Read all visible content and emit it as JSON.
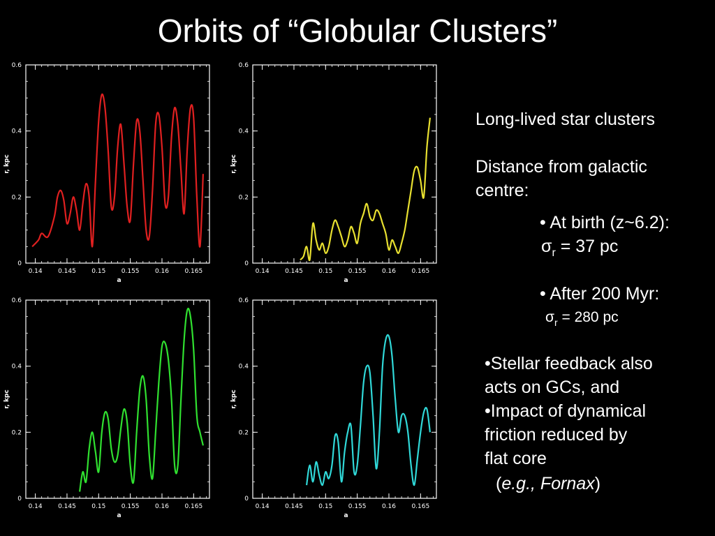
{
  "title": "Orbits of “Globular Clusters”",
  "text": {
    "line1": "Long-lived star clusters",
    "distance_line1": "Distance from galactic",
    "distance_line2": "centre:",
    "birth_label": "• At birth (z~6.2):",
    "sigma_symbol": "σ",
    "sigma_sub": "r",
    "birth_value": " = 37 pc",
    "after_label": "• After 200 Myr:",
    "after_value": " = 280 pc",
    "feedback_1": "•Stellar feedback also",
    "feedback_2": "acts on GCs, and",
    "impact_1": "•Impact of dynamical",
    "impact_2": "friction reduced by",
    "impact_3": "flat core",
    "eg_open": "(",
    "eg_text": "e.g., Fornax",
    "eg_close": ")"
  },
  "chart_data": [
    {
      "type": "line",
      "color": "#e02020",
      "xlabel": "a",
      "ylabel": "r, kpc",
      "xlim": [
        0.1385,
        0.1675
      ],
      "ylim": [
        0,
        0.6
      ],
      "xticks": [
        0.14,
        0.145,
        0.15,
        0.155,
        0.16,
        0.165
      ],
      "xtick_labels": [
        "0.14",
        "0.145",
        "0.15",
        "0.155",
        "0.16",
        "0.165"
      ],
      "yticks": [
        0,
        0.2,
        0.4,
        0.6
      ],
      "ytick_labels": [
        "0",
        "0.2",
        "0.4",
        "0.6"
      ],
      "series": [
        {
          "x": [
            0.1395,
            0.1405,
            0.141,
            0.142,
            0.143,
            0.1435,
            0.144,
            0.1445,
            0.145,
            0.1455,
            0.146,
            0.1465,
            0.147,
            0.1475,
            0.148,
            0.1485,
            0.149,
            0.1495,
            0.15,
            0.1505,
            0.151,
            0.1515,
            0.152,
            0.1525,
            0.153,
            0.1535,
            0.154,
            0.1545,
            0.155,
            0.1555,
            0.156,
            0.1565,
            0.157,
            0.1575,
            0.158,
            0.1585,
            0.159,
            0.1595,
            0.16,
            0.1605,
            0.161,
            0.1615,
            0.162,
            0.1625,
            0.163,
            0.1635,
            0.164,
            0.1645,
            0.165,
            0.1655,
            0.166,
            0.1665
          ],
          "y": [
            0.05,
            0.07,
            0.09,
            0.08,
            0.14,
            0.2,
            0.22,
            0.19,
            0.12,
            0.15,
            0.2,
            0.16,
            0.1,
            0.18,
            0.24,
            0.2,
            0.05,
            0.25,
            0.43,
            0.51,
            0.47,
            0.34,
            0.17,
            0.2,
            0.35,
            0.42,
            0.3,
            0.17,
            0.13,
            0.3,
            0.43,
            0.4,
            0.25,
            0.1,
            0.08,
            0.22,
            0.42,
            0.45,
            0.35,
            0.18,
            0.2,
            0.38,
            0.47,
            0.42,
            0.28,
            0.15,
            0.35,
            0.47,
            0.44,
            0.2,
            0.05,
            0.27
          ]
        }
      ]
    },
    {
      "type": "line",
      "color": "#e8e030",
      "xlabel": "a",
      "ylabel": "r, kpc",
      "xlim": [
        0.1385,
        0.1675
      ],
      "ylim": [
        0,
        0.6
      ],
      "xticks": [
        0.14,
        0.145,
        0.15,
        0.155,
        0.16,
        0.165
      ],
      "xtick_labels": [
        "0.14",
        "0.145",
        "0.15",
        "0.155",
        "0.16",
        "0.165"
      ],
      "yticks": [
        0,
        0.2,
        0.4,
        0.6
      ],
      "ytick_labels": [
        "0",
        "0.2",
        "0.4",
        "0.6"
      ],
      "series": [
        {
          "x": [
            0.146,
            0.1465,
            0.147,
            0.1475,
            0.148,
            0.1485,
            0.149,
            0.1495,
            0.15,
            0.1505,
            0.151,
            0.1515,
            0.152,
            0.1525,
            0.153,
            0.1535,
            0.154,
            0.1545,
            0.155,
            0.1555,
            0.156,
            0.1565,
            0.157,
            0.1575,
            0.158,
            0.1585,
            0.159,
            0.1595,
            0.16,
            0.1605,
            0.161,
            0.1615,
            0.162,
            0.1625,
            0.163,
            0.1635,
            0.164,
            0.1645,
            0.165,
            0.1655,
            0.166,
            0.1665
          ],
          "y": [
            0.01,
            0.02,
            0.05,
            0.01,
            0.12,
            0.07,
            0.04,
            0.06,
            0.03,
            0.05,
            0.1,
            0.13,
            0.11,
            0.08,
            0.05,
            0.07,
            0.11,
            0.09,
            0.06,
            0.12,
            0.15,
            0.18,
            0.14,
            0.13,
            0.16,
            0.15,
            0.12,
            0.09,
            0.04,
            0.07,
            0.05,
            0.03,
            0.06,
            0.1,
            0.16,
            0.22,
            0.28,
            0.29,
            0.25,
            0.2,
            0.35,
            0.44
          ]
        }
      ]
    },
    {
      "type": "line",
      "color": "#30e030",
      "xlabel": "a",
      "ylabel": "r, kpc",
      "xlim": [
        0.1385,
        0.1675
      ],
      "ylim": [
        0,
        0.6
      ],
      "xticks": [
        0.14,
        0.145,
        0.15,
        0.155,
        0.16,
        0.165
      ],
      "xtick_labels": [
        "0.14",
        "0.145",
        "0.15",
        "0.155",
        "0.16",
        "0.165"
      ],
      "yticks": [
        0,
        0.2,
        0.4,
        0.6
      ],
      "ytick_labels": [
        "0",
        "0.2",
        "0.4",
        "0.6"
      ],
      "series": [
        {
          "x": [
            0.147,
            0.1475,
            0.148,
            0.1485,
            0.149,
            0.1495,
            0.15,
            0.1505,
            0.151,
            0.1515,
            0.152,
            0.1525,
            0.153,
            0.1535,
            0.154,
            0.1545,
            0.155,
            0.1555,
            0.156,
            0.1565,
            0.157,
            0.1575,
            0.158,
            0.1585,
            0.159,
            0.1595,
            0.16,
            0.1605,
            0.161,
            0.1615,
            0.162,
            0.1625,
            0.163,
            0.1635,
            0.164,
            0.1645,
            0.165,
            0.1655,
            0.166,
            0.1665
          ],
          "y": [
            0.02,
            0.08,
            0.05,
            0.15,
            0.2,
            0.14,
            0.08,
            0.2,
            0.26,
            0.24,
            0.15,
            0.11,
            0.13,
            0.21,
            0.27,
            0.23,
            0.1,
            0.05,
            0.2,
            0.33,
            0.37,
            0.3,
            0.13,
            0.06,
            0.2,
            0.35,
            0.46,
            0.47,
            0.42,
            0.3,
            0.1,
            0.1,
            0.3,
            0.48,
            0.57,
            0.55,
            0.45,
            0.25,
            0.2,
            0.16
          ]
        }
      ]
    },
    {
      "type": "line",
      "color": "#30d8d8",
      "xlabel": "a",
      "ylabel": "r, kpc",
      "xlim": [
        0.1385,
        0.1675
      ],
      "ylim": [
        0,
        0.6
      ],
      "xticks": [
        0.14,
        0.145,
        0.15,
        0.155,
        0.16,
        0.165
      ],
      "xtick_labels": [
        "0.14",
        "0.145",
        "0.15",
        "0.155",
        "0.16",
        "0.165"
      ],
      "yticks": [
        0,
        0.2,
        0.4,
        0.6
      ],
      "ytick_labels": [
        "0",
        "0.2",
        "0.4",
        "0.6"
      ],
      "series": [
        {
          "x": [
            0.147,
            0.1475,
            0.148,
            0.1485,
            0.149,
            0.1495,
            0.15,
            0.1505,
            0.151,
            0.1515,
            0.152,
            0.1525,
            0.153,
            0.1535,
            0.154,
            0.1545,
            0.155,
            0.1555,
            0.156,
            0.1565,
            0.157,
            0.1575,
            0.158,
            0.1585,
            0.159,
            0.1595,
            0.16,
            0.1605,
            0.161,
            0.1615,
            0.162,
            0.1625,
            0.163,
            0.1635,
            0.164,
            0.1645,
            0.165,
            0.1655,
            0.166,
            0.1665
          ],
          "y": [
            0.04,
            0.1,
            0.05,
            0.11,
            0.07,
            0.04,
            0.08,
            0.06,
            0.1,
            0.19,
            0.17,
            0.05,
            0.14,
            0.2,
            0.22,
            0.08,
            0.1,
            0.22,
            0.35,
            0.4,
            0.38,
            0.25,
            0.09,
            0.2,
            0.4,
            0.48,
            0.49,
            0.43,
            0.3,
            0.2,
            0.25,
            0.25,
            0.2,
            0.1,
            0.04,
            0.12,
            0.2,
            0.26,
            0.27,
            0.2
          ]
        }
      ]
    }
  ]
}
